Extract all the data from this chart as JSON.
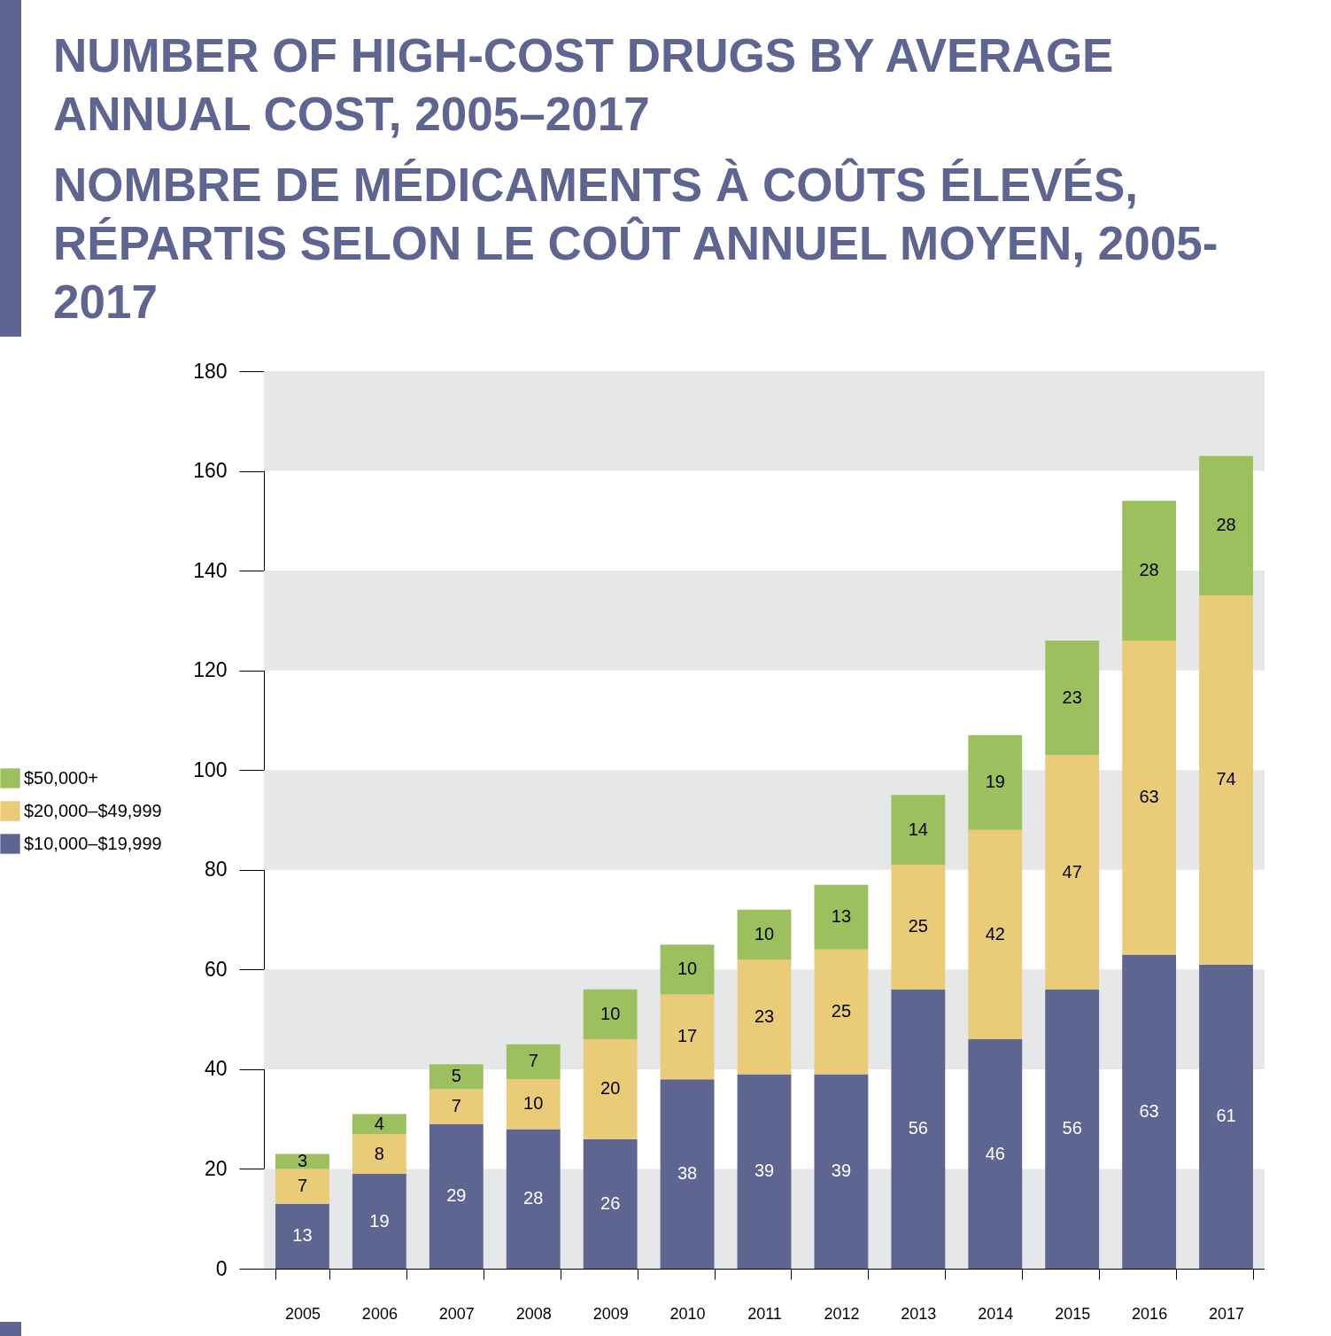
{
  "chart_data": {
    "type": "bar",
    "title": "NUMBER OF HIGH-COST DRUGS BY AVERAGE ANNUAL COST, 2005–2017",
    "subtitle": "NOMBRE DE MÉDICAMENTS À COÛTS ÉLEVÉS, RÉPARTIS SELON LE COÛT ANNUEL MOYEN, 2005-2017",
    "categories": [
      "2005",
      "2006",
      "2007",
      "2008",
      "2009",
      "2010",
      "2011",
      "2012",
      "2013",
      "2014",
      "2015",
      "2016",
      "2017"
    ],
    "stacked": true,
    "data_labels": true,
    "legend": "left",
    "grid": false,
    "ylim": [
      0,
      180
    ],
    "yticks": [
      0,
      20,
      40,
      60,
      80,
      100,
      120,
      140,
      160,
      180
    ],
    "bands": [
      {
        "axis": "y",
        "from": 0,
        "to": 20,
        "color": "#e6e7e8"
      },
      {
        "axis": "y",
        "from": 40,
        "to": 60,
        "color": "#e6e7e8"
      },
      {
        "axis": "y",
        "from": 80,
        "to": 100,
        "color": "#e6e7e8"
      },
      {
        "axis": "y",
        "from": 120,
        "to": 140,
        "color": "#e6e7e8"
      },
      {
        "axis": "y",
        "from": 160,
        "to": 180,
        "color": "#e6e7e8"
      }
    ],
    "series": [
      {
        "name": "$10,000–$19,999",
        "color": "#5f6591",
        "values": [
          13,
          19,
          29,
          28,
          26,
          38,
          39,
          39,
          56,
          46,
          56,
          63,
          61
        ]
      },
      {
        "name": "$20,000–$49,999",
        "color": "#e9cb78",
        "values": [
          7,
          8,
          7,
          10,
          20,
          17,
          23,
          25,
          25,
          42,
          47,
          63,
          74
        ]
      },
      {
        "name": "$50,000+",
        "color": "#9dc05f",
        "values": [
          3,
          4,
          5,
          7,
          10,
          10,
          10,
          13,
          14,
          19,
          23,
          28,
          28
        ]
      }
    ]
  }
}
